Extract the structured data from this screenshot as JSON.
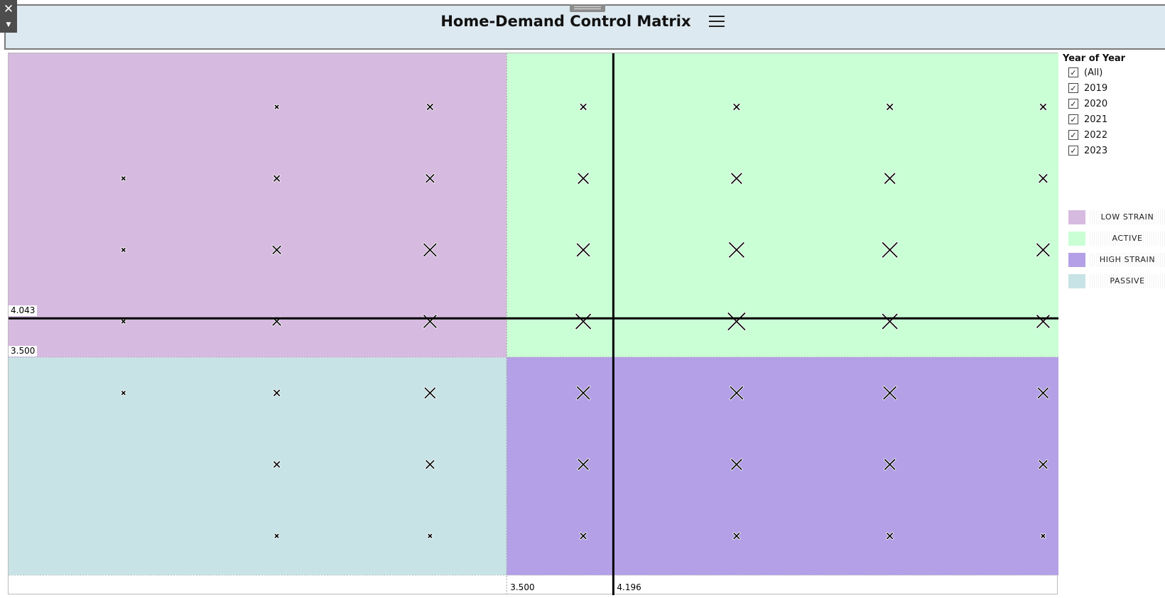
{
  "header": {
    "title": "Home-Demand Control Matrix",
    "menu_icon": "hamburger-menu-icon",
    "close_icon": "close-icon",
    "dropdown_icon": "caret-down-icon",
    "grip_icon": "drag-grip-icon"
  },
  "filter": {
    "title": "Year of Year",
    "items": [
      {
        "label": "(All)",
        "checked": true
      },
      {
        "label": "2019",
        "checked": true
      },
      {
        "label": "2020",
        "checked": true
      },
      {
        "label": "2021",
        "checked": true
      },
      {
        "label": "2022",
        "checked": true
      },
      {
        "label": "2023",
        "checked": true
      }
    ]
  },
  "legend": {
    "items": [
      {
        "label": "LOW STRAIN",
        "color": "#d7bae0"
      },
      {
        "label": "ACTIVE",
        "color": "#caffd5"
      },
      {
        "label": "HIGH STRAIN",
        "color": "#b4a0e6"
      },
      {
        "label": "PASSIVE",
        "color": "#c8e3e6"
      }
    ]
  },
  "chart_data": {
    "type": "scatter",
    "marker": "x",
    "x_columns": [
      1,
      2,
      3,
      4,
      5,
      6,
      7
    ],
    "y_rows": [
      1,
      2,
      3,
      4,
      5,
      6,
      7
    ],
    "xlim": [
      0.25,
      7.1
    ],
    "ylim": [
      0.45,
      7.75
    ],
    "quadrant_split": {
      "x": 3.5,
      "y": 3.5
    },
    "quadrants": {
      "low_strain": {
        "label": "LOW STRAIN",
        "color": "#d7bae0"
      },
      "active": {
        "label": "ACTIVE",
        "color": "#caffd5"
      },
      "high_strain": {
        "label": "HIGH STRAIN",
        "color": "#b4a0e6"
      },
      "passive": {
        "label": "PASSIVE",
        "color": "#c8e3e6"
      }
    },
    "reference_lines": {
      "vertical": {
        "value": 4.196,
        "label": "4.196"
      },
      "horizontal": {
        "value": 4.043,
        "label": "4.043"
      },
      "split_x_label": "3.500",
      "split_y_label": "3.500"
    },
    "points": [
      {
        "x": 2,
        "y": 7,
        "size": 2
      },
      {
        "x": 3,
        "y": 7,
        "size": 3
      },
      {
        "x": 4,
        "y": 7,
        "size": 3
      },
      {
        "x": 5,
        "y": 7,
        "size": 3
      },
      {
        "x": 6,
        "y": 7,
        "size": 3
      },
      {
        "x": 7,
        "y": 7,
        "size": 3
      },
      {
        "x": 1,
        "y": 6,
        "size": 2
      },
      {
        "x": 2,
        "y": 6,
        "size": 3
      },
      {
        "x": 3,
        "y": 6,
        "size": 4
      },
      {
        "x": 4,
        "y": 6,
        "size": 5
      },
      {
        "x": 5,
        "y": 6,
        "size": 5
      },
      {
        "x": 6,
        "y": 6,
        "size": 5
      },
      {
        "x": 7,
        "y": 6,
        "size": 4
      },
      {
        "x": 1,
        "y": 5,
        "size": 2
      },
      {
        "x": 2,
        "y": 5,
        "size": 4
      },
      {
        "x": 3,
        "y": 5,
        "size": 6
      },
      {
        "x": 4,
        "y": 5,
        "size": 6
      },
      {
        "x": 5,
        "y": 6,
        "size": 5
      },
      {
        "x": 5,
        "y": 5,
        "size": 7
      },
      {
        "x": 6,
        "y": 5,
        "size": 7
      },
      {
        "x": 7,
        "y": 5,
        "size": 6
      },
      {
        "x": 1,
        "y": 4,
        "size": 2
      },
      {
        "x": 2,
        "y": 4,
        "size": 4
      },
      {
        "x": 3,
        "y": 4,
        "size": 6
      },
      {
        "x": 4,
        "y": 4,
        "size": 7
      },
      {
        "x": 5,
        "y": 4,
        "size": 8
      },
      {
        "x": 6,
        "y": 4,
        "size": 7
      },
      {
        "x": 7,
        "y": 4,
        "size": 6
      },
      {
        "x": 1,
        "y": 3,
        "size": 2
      },
      {
        "x": 2,
        "y": 3,
        "size": 3
      },
      {
        "x": 3,
        "y": 3,
        "size": 5
      },
      {
        "x": 4,
        "y": 3,
        "size": 6
      },
      {
        "x": 5,
        "y": 3,
        "size": 6
      },
      {
        "x": 6,
        "y": 3,
        "size": 6
      },
      {
        "x": 7,
        "y": 3,
        "size": 5
      },
      {
        "x": 2,
        "y": 2,
        "size": 3
      },
      {
        "x": 3,
        "y": 2,
        "size": 4
      },
      {
        "x": 4,
        "y": 2,
        "size": 5
      },
      {
        "x": 5,
        "y": 2,
        "size": 5
      },
      {
        "x": 6,
        "y": 2,
        "size": 5
      },
      {
        "x": 7,
        "y": 2,
        "size": 4
      },
      {
        "x": 2,
        "y": 1,
        "size": 2
      },
      {
        "x": 3,
        "y": 1,
        "size": 2
      },
      {
        "x": 4,
        "y": 1,
        "size": 3
      },
      {
        "x": 5,
        "y": 1,
        "size": 3
      },
      {
        "x": 6,
        "y": 1,
        "size": 3
      },
      {
        "x": 7,
        "y": 1,
        "size": 2
      }
    ]
  }
}
